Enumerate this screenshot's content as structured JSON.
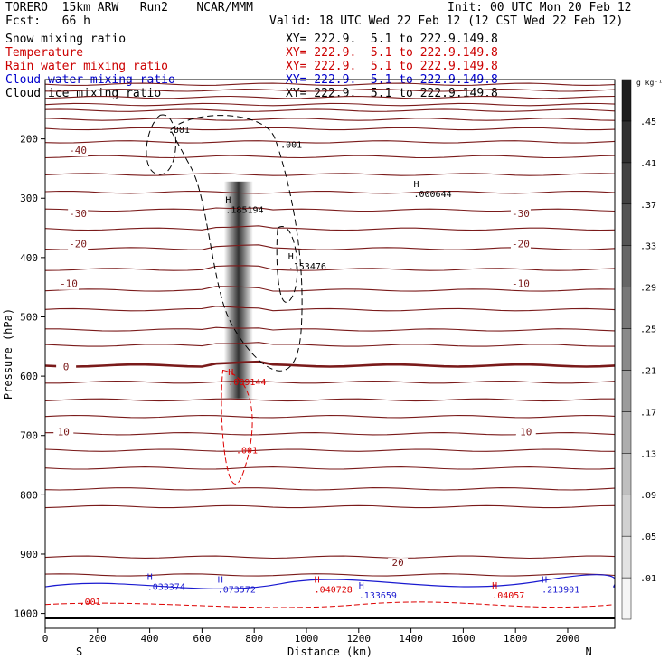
{
  "header": {
    "model": "TORERO  15km ARW   Run2    NCAR/MMM",
    "init": "Init: 00 UTC Mon 20 Feb 12",
    "fcst": "Fcst:   66 h",
    "valid": "Valid: 18 UTC Wed 22 Feb 12 (12 CST Wed 22 Feb 12)"
  },
  "fields": [
    {
      "name": "Snow mixing ratio",
      "xy": "XY= 222.9.  5.1 to 222.9.149.8",
      "color": "#000000"
    },
    {
      "name": "Temperature",
      "xy": "XY= 222.9.  5.1 to 222.9.149.8",
      "color": "#cc0000"
    },
    {
      "name": "Rain water mixing ratio",
      "xy": "XY= 222.9.  5.1 to 222.9.149.8",
      "color": "#cc0000"
    },
    {
      "name": "Cloud water mixing ratio",
      "xy": "XY= 222.9.  5.1 to 222.9.149.8",
      "color": "#0000cc"
    },
    {
      "name": "Cloud ice mixing ratio",
      "xy": "XY= 222.9.  5.1 to 222.9.149.8",
      "color": "#000000"
    }
  ],
  "chart_data": {
    "type": "cross-section",
    "xlabel": "Distance (km)",
    "ylabel": "Pressure (hPa)",
    "xlim": [
      0,
      2180
    ],
    "ylim": [
      1025,
      100
    ],
    "x_ticks": [
      0,
      200,
      400,
      600,
      800,
      1000,
      1200,
      1400,
      1600,
      1800,
      2000
    ],
    "y_ticks": [
      200,
      300,
      400,
      500,
      600,
      700,
      800,
      900,
      1000
    ],
    "left_end_label": "S",
    "right_end_label": "N",
    "colorbar": {
      "unit": "g kg⁻¹",
      "levels": [
        ".01",
        ".05",
        ".09",
        ".13",
        ".17",
        ".21",
        ".25",
        ".29",
        ".33",
        ".37",
        ".41",
        ".45"
      ]
    },
    "snow_max": {
      "x": 740,
      "p": 470
    },
    "isotherms": [
      {
        "p": 108,
        "value": ""
      },
      {
        "p": 118,
        "value": ""
      },
      {
        "p": 130,
        "value": ""
      },
      {
        "p": 142,
        "value": ""
      },
      {
        "p": 152,
        "value": ""
      },
      {
        "p": 167,
        "value": ""
      },
      {
        "p": 183,
        "value": ""
      },
      {
        "p": 205,
        "value": ""
      },
      {
        "p": 230,
        "value": ""
      },
      {
        "p": 260,
        "value": ""
      },
      {
        "p": 290,
        "value": ""
      },
      {
        "p": 320,
        "value": ""
      },
      {
        "p": 352,
        "value": ""
      },
      {
        "p": 385,
        "value": ""
      },
      {
        "p": 420,
        "value": ""
      },
      {
        "p": 455,
        "value": ""
      },
      {
        "p": 488,
        "value": ""
      },
      {
        "p": 522,
        "value": ""
      },
      {
        "p": 548,
        "value": ""
      },
      {
        "p": 582,
        "value": "0",
        "bold": true
      },
      {
        "p": 610,
        "value": ""
      },
      {
        "p": 640,
        "value": ""
      },
      {
        "p": 668,
        "value": ""
      },
      {
        "p": 697,
        "value": ""
      },
      {
        "p": 725,
        "value": ""
      },
      {
        "p": 755,
        "value": ""
      },
      {
        "p": 790,
        "value": ""
      },
      {
        "p": 820,
        "value": ""
      },
      {
        "p": 905,
        "value": ""
      },
      {
        "p": 935,
        "value": ""
      }
    ],
    "temp_labels": [
      {
        "x": 125,
        "p": 225,
        "text": "-40"
      },
      {
        "x": 125,
        "p": 332,
        "text": "-30"
      },
      {
        "x": 1820,
        "p": 332,
        "text": "-30"
      },
      {
        "x": 125,
        "p": 383,
        "text": "-20"
      },
      {
        "x": 1820,
        "p": 383,
        "text": "-20"
      },
      {
        "x": 90,
        "p": 450,
        "text": "-10"
      },
      {
        "x": 1820,
        "p": 450,
        "text": "-10"
      },
      {
        "x": 80,
        "p": 590,
        "text": "0"
      },
      {
        "x": 1840,
        "p": 700,
        "text": "10"
      },
      {
        "x": 70,
        "p": 700,
        "text": "10"
      },
      {
        "x": 1350,
        "p": 920,
        "text": "20"
      }
    ],
    "snow_labels": [
      {
        "x": 470,
        "p": 190,
        "text": ".001"
      },
      {
        "x": 900,
        "p": 215,
        "text": ".001"
      },
      {
        "x": 690,
        "p": 325,
        "text": ".185194",
        "marker": "H"
      },
      {
        "x": 930,
        "p": 420,
        "text": ".153476",
        "marker": "H"
      },
      {
        "x": 1410,
        "p": 298,
        "text": ".000644",
        "marker": "H"
      }
    ],
    "rain_labels": [
      {
        "x": 700,
        "p": 615,
        "text": ".089144",
        "marker": "H"
      },
      {
        "x": 730,
        "p": 730,
        "text": ".001"
      },
      {
        "x": 130,
        "p": 985,
        "text": ".001"
      },
      {
        "x": 1030,
        "p": 965,
        "text": ".040728",
        "marker": "H"
      },
      {
        "x": 1710,
        "p": 975,
        "text": ".04057",
        "marker": "H"
      }
    ],
    "cloud_labels": [
      {
        "x": 390,
        "p": 960,
        "text": ".033374",
        "marker": "H"
      },
      {
        "x": 660,
        "p": 965,
        "text": ".073572",
        "marker": "H"
      },
      {
        "x": 1200,
        "p": 975,
        "text": ".133659",
        "marker": "H"
      },
      {
        "x": 1900,
        "p": 965,
        "text": ".213901",
        "marker": "H"
      }
    ]
  }
}
